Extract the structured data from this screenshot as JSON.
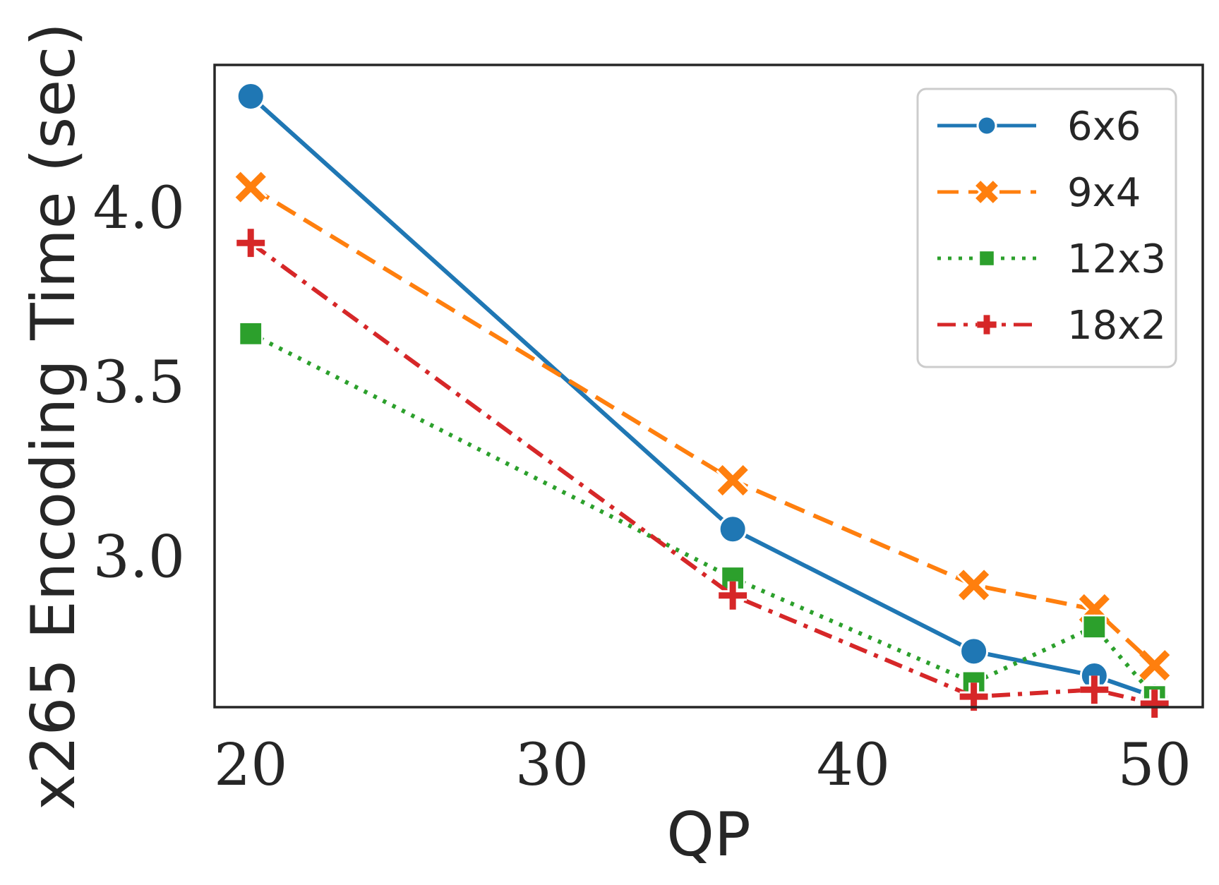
{
  "chart_data": {
    "type": "line",
    "xlabel": "QP",
    "ylabel": "x265 Encoding Time (sec)",
    "xlim": [
      18.8,
      51.6
    ],
    "ylim": [
      2.57,
      4.41
    ],
    "xticks": [
      20,
      30,
      40,
      50
    ],
    "yticks": [
      3.0,
      3.5,
      4.0
    ],
    "xtick_labels": [
      "20",
      "30",
      "40",
      "50"
    ],
    "ytick_labels": [
      "3.0",
      "3.5",
      "4.0"
    ],
    "grid": false,
    "legend_position": "top-right",
    "x": [
      20,
      36,
      44,
      48,
      50
    ],
    "series": [
      {
        "name": "6x6",
        "values": [
          4.32,
          3.08,
          2.73,
          2.66,
          2.6
        ],
        "color": "#1f77b4",
        "dash": "solid",
        "marker": "circle"
      },
      {
        "name": "9x4",
        "values": [
          4.06,
          3.22,
          2.92,
          2.85,
          2.69
        ],
        "color": "#ff7f0e",
        "dash": "dashed",
        "marker": "x"
      },
      {
        "name": "12x3",
        "values": [
          3.64,
          2.94,
          2.64,
          2.8,
          2.6
        ],
        "color": "#2ca02c",
        "dash": "dotted",
        "marker": "square"
      },
      {
        "name": "18x2",
        "values": [
          3.9,
          2.89,
          2.6,
          2.62,
          2.58
        ],
        "color": "#d62728",
        "dash": "dashdot",
        "marker": "plus"
      }
    ]
  }
}
